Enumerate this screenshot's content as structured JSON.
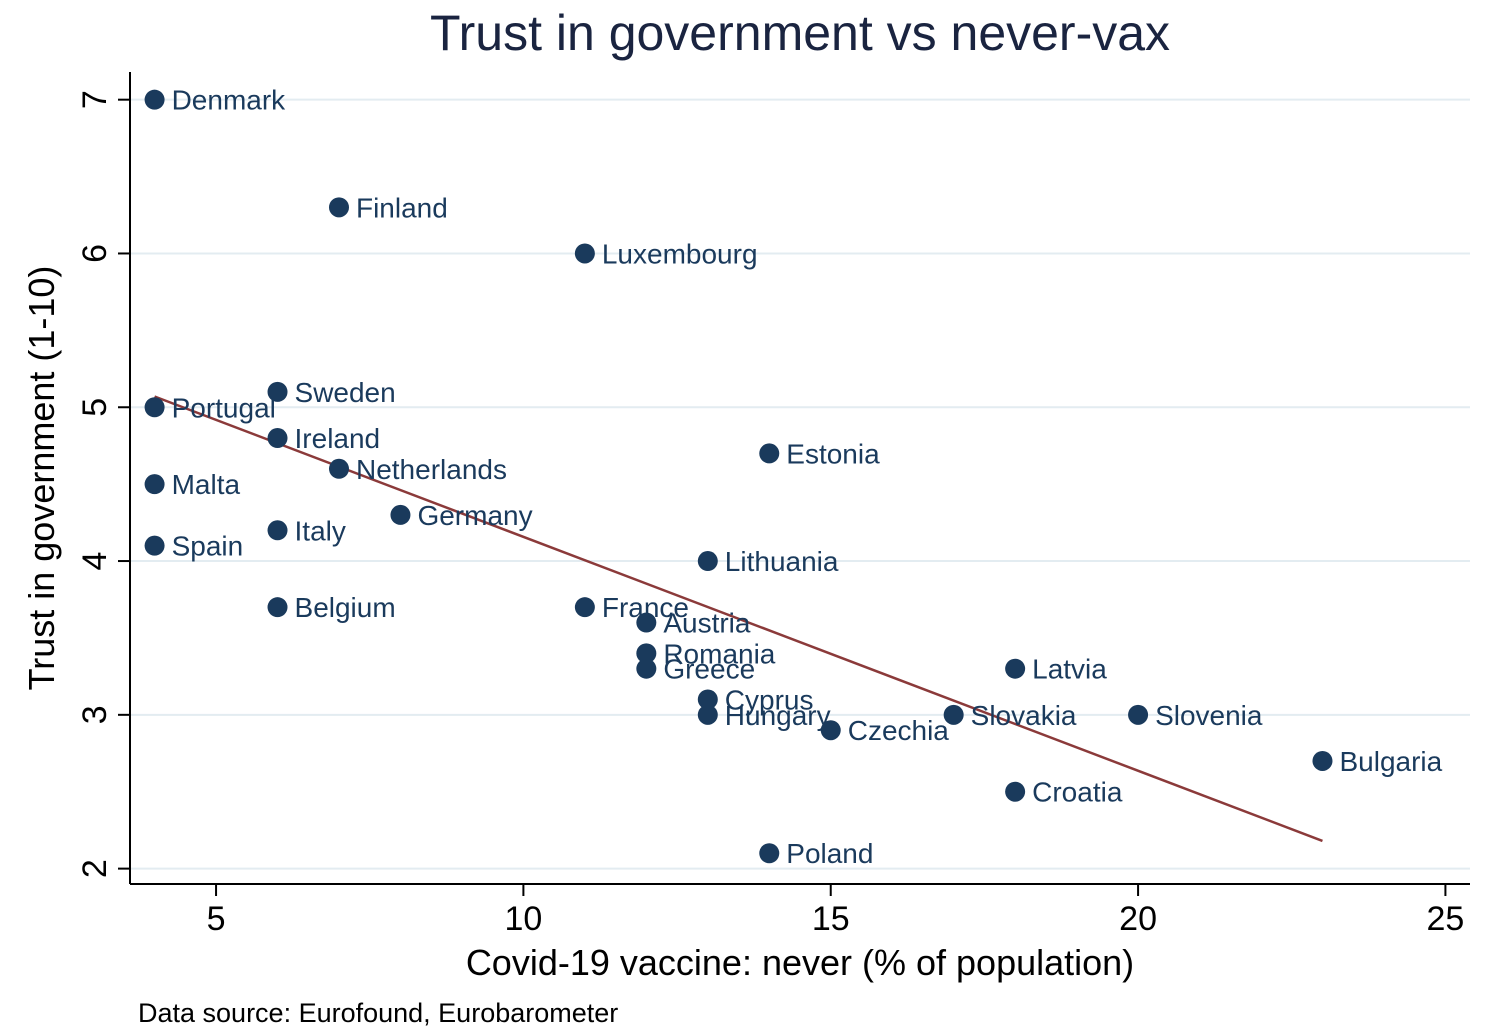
{
  "chart_data": {
    "type": "scatter",
    "title": "Trust in government vs never-vax",
    "xlabel": "Covid-19 vaccine: never (% of population)",
    "ylabel": "Trust in government (1-10)",
    "note": "Data source: Eurofound, Eurobarometer",
    "xlim": [
      3.6,
      25.4
    ],
    "ylim": [
      1.9,
      7.18
    ],
    "xticks": [
      5,
      10,
      15,
      20,
      25
    ],
    "yticks": [
      2,
      3,
      4,
      5,
      6,
      7
    ],
    "grid": "horizontal",
    "colors": {
      "marker": "#1a3a5c",
      "label": "#1a3a5c",
      "fit_line": "#8b3a3a",
      "grid": "#e3ecf1",
      "axis": "#000000"
    },
    "fit_line": {
      "x": [
        4,
        23
      ],
      "y": [
        5.07,
        2.18
      ]
    },
    "points": [
      {
        "label": "Denmark",
        "x": 4,
        "y": 7.0
      },
      {
        "label": "Finland",
        "x": 7,
        "y": 6.3
      },
      {
        "label": "Luxembourg",
        "x": 11,
        "y": 6.0
      },
      {
        "label": "Sweden",
        "x": 6,
        "y": 5.1
      },
      {
        "label": "Portugal",
        "x": 4,
        "y": 5.0
      },
      {
        "label": "Ireland",
        "x": 6,
        "y": 4.8
      },
      {
        "label": "Estonia",
        "x": 14,
        "y": 4.7
      },
      {
        "label": "Netherlands",
        "x": 7,
        "y": 4.6
      },
      {
        "label": "Malta",
        "x": 4,
        "y": 4.5
      },
      {
        "label": "Germany",
        "x": 8,
        "y": 4.3
      },
      {
        "label": "Italy",
        "x": 6,
        "y": 4.2
      },
      {
        "label": "Spain",
        "x": 4,
        "y": 4.1
      },
      {
        "label": "Lithuania",
        "x": 13,
        "y": 4.0
      },
      {
        "label": "Belgium",
        "x": 6,
        "y": 3.7
      },
      {
        "label": "France",
        "x": 11,
        "y": 3.7
      },
      {
        "label": "Austria",
        "x": 12,
        "y": 3.6
      },
      {
        "label": "Romania",
        "x": 12,
        "y": 3.4
      },
      {
        "label": "Greece",
        "x": 12,
        "y": 3.3
      },
      {
        "label": "Latvia",
        "x": 18,
        "y": 3.3
      },
      {
        "label": "Cyprus",
        "x": 13,
        "y": 3.1
      },
      {
        "label": "Hungary",
        "x": 13,
        "y": 3.0
      },
      {
        "label": "Slovakia",
        "x": 17,
        "y": 3.0
      },
      {
        "label": "Slovenia",
        "x": 20,
        "y": 3.0
      },
      {
        "label": "Czechia",
        "x": 15,
        "y": 2.9
      },
      {
        "label": "Bulgaria",
        "x": 23,
        "y": 2.7
      },
      {
        "label": "Croatia",
        "x": 18,
        "y": 2.5
      },
      {
        "label": "Poland",
        "x": 14,
        "y": 2.1
      }
    ]
  }
}
